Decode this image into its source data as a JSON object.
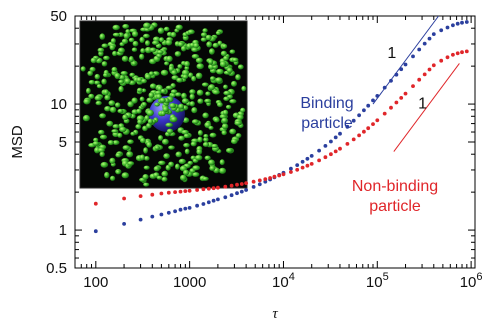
{
  "chart_data": {
    "type": "scatter",
    "xlabel": "τ",
    "ylabel": "MSD",
    "xscale": "log",
    "yscale": "log",
    "xlim": [
      60,
      1100000
    ],
    "ylim": [
      0.5,
      50
    ],
    "x_ticks": [
      {
        "value": 100,
        "label": "100"
      },
      {
        "value": 1000,
        "label": "1000"
      },
      {
        "value": 10000,
        "base": "10",
        "exp": "4"
      },
      {
        "value": 100000,
        "base": "10",
        "exp": "5"
      },
      {
        "value": 1000000,
        "base": "10",
        "exp": "6"
      }
    ],
    "y_ticks": [
      {
        "value": 0.5,
        "label": "0.5"
      },
      {
        "value": 1,
        "label": "1"
      },
      {
        "value": 5,
        "label": "5"
      },
      {
        "value": 10,
        "label": "10"
      },
      {
        "value": 50,
        "label": "50"
      }
    ],
    "series": [
      {
        "name": "Binding particle",
        "color": "#2b3f9e",
        "points": [
          [
            100,
            0.98
          ],
          [
            200,
            1.12
          ],
          [
            300,
            1.21
          ],
          [
            400,
            1.28
          ],
          [
            500,
            1.33
          ],
          [
            600,
            1.37
          ],
          [
            700,
            1.41
          ],
          [
            800,
            1.45
          ],
          [
            900,
            1.48
          ],
          [
            1000,
            1.5
          ],
          [
            1200,
            1.56
          ],
          [
            1400,
            1.61
          ],
          [
            1600,
            1.66
          ],
          [
            1800,
            1.71
          ],
          [
            2000,
            1.75
          ],
          [
            2400,
            1.82
          ],
          [
            2800,
            1.89
          ],
          [
            3200,
            1.96
          ],
          [
            3600,
            2.02
          ],
          [
            4000,
            2.08
          ],
          [
            4800,
            2.2
          ],
          [
            5600,
            2.31
          ],
          [
            6400,
            2.42
          ],
          [
            7200,
            2.52
          ],
          [
            8000,
            2.62
          ],
          [
            9000,
            2.74
          ],
          [
            10000,
            2.85
          ],
          [
            12000,
            3.07
          ],
          [
            14000,
            3.28
          ],
          [
            16000,
            3.48
          ],
          [
            18000,
            3.68
          ],
          [
            20000,
            3.88
          ],
          [
            24000,
            4.27
          ],
          [
            28000,
            4.66
          ],
          [
            32000,
            5.05
          ],
          [
            36000,
            5.44
          ],
          [
            40000,
            5.82
          ],
          [
            48000,
            6.6
          ],
          [
            56000,
            7.38
          ],
          [
            64000,
            8.15
          ],
          [
            72000,
            8.93
          ],
          [
            80000,
            9.7
          ],
          [
            90000,
            10.7
          ],
          [
            100000,
            11.6
          ],
          [
            120000,
            13.5
          ],
          [
            140000,
            15.3
          ],
          [
            160000,
            17.1
          ],
          [
            180000,
            18.9
          ],
          [
            200000,
            20.6
          ],
          [
            240000,
            23.9
          ],
          [
            280000,
            27.1
          ],
          [
            320000,
            30.2
          ],
          [
            360000,
            33.1
          ],
          [
            400000,
            35.9
          ],
          [
            480000,
            38.5
          ],
          [
            560000,
            40.5
          ],
          [
            640000,
            42.2
          ],
          [
            720000,
            43.4
          ],
          [
            800000,
            44.2
          ],
          [
            900000,
            44.8
          ]
        ]
      },
      {
        "name": "Non-binding particle",
        "color": "#e0262a",
        "points": [
          [
            100,
            1.62
          ],
          [
            200,
            1.78
          ],
          [
            300,
            1.86
          ],
          [
            400,
            1.91
          ],
          [
            500,
            1.95
          ],
          [
            600,
            1.98
          ],
          [
            700,
            2.0
          ],
          [
            800,
            2.02
          ],
          [
            900,
            2.04
          ],
          [
            1000,
            2.05
          ],
          [
            1200,
            2.08
          ],
          [
            1400,
            2.11
          ],
          [
            1600,
            2.13
          ],
          [
            1800,
            2.15
          ],
          [
            2000,
            2.17
          ],
          [
            2400,
            2.21
          ],
          [
            2800,
            2.25
          ],
          [
            3200,
            2.29
          ],
          [
            3600,
            2.32
          ],
          [
            4000,
            2.36
          ],
          [
            4800,
            2.42
          ],
          [
            5600,
            2.48
          ],
          [
            6400,
            2.54
          ],
          [
            7200,
            2.59
          ],
          [
            8000,
            2.65
          ],
          [
            9000,
            2.71
          ],
          [
            10000,
            2.77
          ],
          [
            12000,
            2.89
          ],
          [
            14000,
            3.01
          ],
          [
            16000,
            3.13
          ],
          [
            18000,
            3.24
          ],
          [
            20000,
            3.35
          ],
          [
            24000,
            3.57
          ],
          [
            28000,
            3.79
          ],
          [
            32000,
            4.0
          ],
          [
            36000,
            4.21
          ],
          [
            40000,
            4.42
          ],
          [
            48000,
            4.83
          ],
          [
            56000,
            5.24
          ],
          [
            64000,
            5.64
          ],
          [
            72000,
            6.04
          ],
          [
            80000,
            6.44
          ],
          [
            90000,
            6.94
          ],
          [
            100000,
            7.43
          ],
          [
            120000,
            8.4
          ],
          [
            140000,
            9.36
          ],
          [
            160000,
            10.3
          ],
          [
            180000,
            11.2
          ],
          [
            200000,
            12.1
          ],
          [
            240000,
            13.9
          ],
          [
            280000,
            15.6
          ],
          [
            320000,
            17.2
          ],
          [
            360000,
            18.8
          ],
          [
            400000,
            20.3
          ],
          [
            480000,
            22.1
          ],
          [
            560000,
            23.5
          ],
          [
            640000,
            24.6
          ],
          [
            720000,
            25.3
          ],
          [
            800000,
            25.8
          ],
          [
            900000,
            26.2
          ]
        ]
      }
    ],
    "slope_guides": [
      {
        "label": "1",
        "color": "#2b3f9e",
        "from": [
          90000,
          10
        ],
        "to": [
          450000,
          50
        ]
      },
      {
        "label": "1",
        "color": "#e0262a",
        "from": [
          150000,
          4.2
        ],
        "to": [
          750000,
          21
        ]
      }
    ],
    "annotations": [
      {
        "lines": [
          "Binding",
          "particle"
        ],
        "color": "#2b3f9e"
      },
      {
        "lines": [
          "Non-binding",
          "particle"
        ],
        "color": "#e0262a"
      }
    ],
    "inset": {
      "description_icon": "simulation-snapshot-image"
    }
  }
}
